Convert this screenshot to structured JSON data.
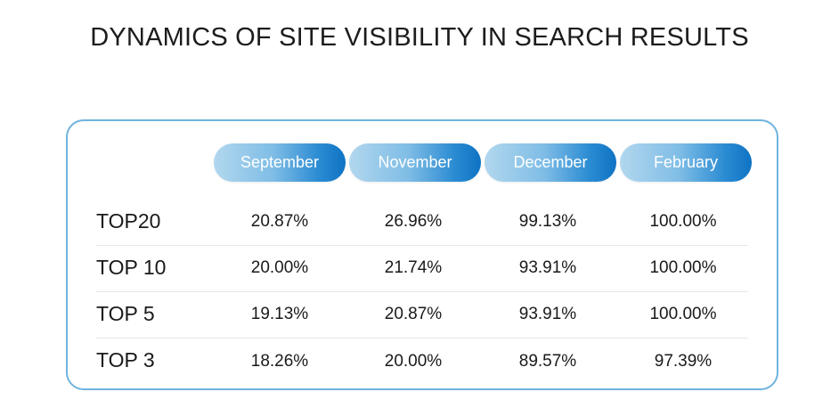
{
  "title": "DYNAMICS OF SITE VISIBILITY IN SEARCH RESULTS",
  "chart_data": {
    "type": "table",
    "title": "DYNAMICS OF SITE VISIBILITY IN SEARCH RESULTS",
    "columns": [
      "September",
      "November",
      "December",
      "February"
    ],
    "rows": [
      {
        "label": "TOP20",
        "values": [
          "20.87%",
          "26.96%",
          "99.13%",
          "100.00%"
        ]
      },
      {
        "label": "TOP 10",
        "values": [
          "20.00%",
          "21.74%",
          "93.91%",
          "100.00%"
        ]
      },
      {
        "label": "TOP 5",
        "values": [
          "19.13%",
          "20.87%",
          "93.91%",
          "100.00%"
        ]
      },
      {
        "label": "TOP 3",
        "values": [
          "18.26%",
          "20.00%",
          "89.57%",
          "97.39%"
        ]
      }
    ]
  },
  "colors": {
    "border": "#6fb3de",
    "header_gradient_start": "#b2d7ee",
    "header_gradient_end": "#0f73c4",
    "header_text": "#ffffff"
  }
}
